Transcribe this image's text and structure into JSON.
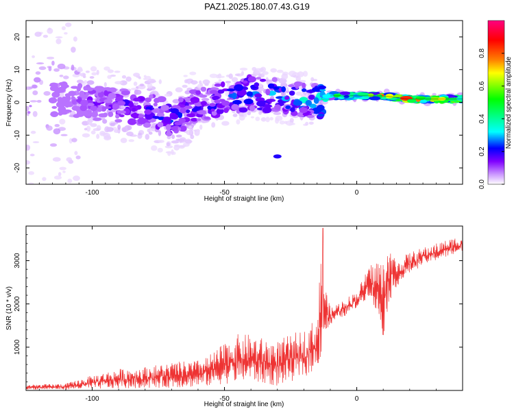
{
  "title": "PAZ1.2025.180.07.43.G19",
  "chart_data": [
    {
      "type": "heatmap",
      "xlabel": "Height of straight line (km)",
      "ylabel": "Frequency (Hz)",
      "xlim": [
        -125,
        40
      ],
      "ylim": [
        -25,
        25
      ],
      "x_ticks": [
        -100,
        -50,
        0
      ],
      "y_ticks": [
        -20,
        -10,
        0,
        10,
        20
      ],
      "colorbar": {
        "label": "Normalized spectral amplitude",
        "range": [
          0.0,
          1.0
        ],
        "ticks": [
          0.0,
          0.2,
          0.4,
          0.6,
          0.8
        ],
        "colors": [
          "#ffffff",
          "#cc99ff",
          "#8000ff",
          "#0000ff",
          "#00ffff",
          "#00ff00",
          "#ffff00",
          "#ff8000",
          "#ff0000",
          "#ff0080"
        ]
      },
      "ridge": {
        "x": [
          -125,
          -110,
          -100,
          -90,
          -80,
          -70,
          -60,
          -50,
          -40,
          -30,
          -20,
          -15,
          -10,
          -5,
          0,
          10,
          20,
          30,
          40
        ],
        "y": [
          0,
          1,
          0,
          -1,
          -2,
          -5,
          -1,
          1,
          3,
          2,
          1,
          0,
          2,
          2,
          2,
          2,
          1,
          1,
          1
        ],
        "amplitude": [
          0.05,
          0.08,
          0.15,
          0.2,
          0.2,
          0.25,
          0.2,
          0.25,
          0.3,
          0.3,
          0.35,
          0.35,
          0.55,
          0.7,
          0.75,
          0.85,
          0.9,
          0.95,
          0.8
        ]
      }
    },
    {
      "type": "line",
      "xlabel": "Height of straight line (km)",
      "ylabel": "SNR (10 * v/v)",
      "xlim": [
        -125,
        40
      ],
      "ylim": [
        0,
        3800
      ],
      "x_ticks": [
        -100,
        -50,
        0
      ],
      "y_ticks": [
        1000,
        2000,
        3000
      ],
      "series": [
        {
          "color": "#ee3333",
          "envelope_x": [
            -125,
            -110,
            -100,
            -90,
            -80,
            -70,
            -60,
            -55,
            -50,
            -45,
            -40,
            -35,
            -30,
            -25,
            -20,
            -15,
            -13,
            -12,
            -10,
            -8,
            -5,
            0,
            5,
            8,
            10,
            12,
            15,
            20,
            25,
            30,
            35,
            40
          ],
          "envelope_low": [
            20,
            20,
            30,
            40,
            50,
            60,
            80,
            100,
            150,
            180,
            200,
            150,
            100,
            200,
            300,
            500,
            800,
            1200,
            1500,
            1600,
            1700,
            1900,
            2200,
            1600,
            1200,
            2000,
            2400,
            2700,
            2900,
            3000,
            3100,
            3200
          ],
          "envelope_high": [
            130,
            160,
            350,
            500,
            550,
            650,
            700,
            850,
            1100,
            1300,
            1300,
            1200,
            1150,
            1300,
            1400,
            1700,
            3700,
            2500,
            1900,
            2000,
            2100,
            2300,
            2900,
            3100,
            3000,
            3400,
            3000,
            3200,
            3300,
            3400,
            3500,
            3600
          ]
        }
      ]
    }
  ]
}
